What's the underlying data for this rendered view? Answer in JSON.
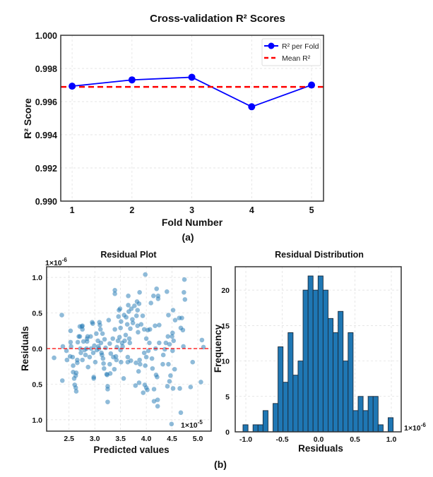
{
  "chart_data": [
    {
      "type": "line",
      "title": "Cross-validation R² Scores",
      "xlabel": "Fold Number",
      "ylabel": "R² Score",
      "panel_label": "(a)",
      "x": [
        1,
        2,
        3,
        4,
        5
      ],
      "xticks": [
        "1",
        "2",
        "3",
        "4",
        "5"
      ],
      "yticks": [
        "0.990",
        "0.992",
        "0.994",
        "0.996",
        "0.998",
        "1.000"
      ],
      "ytick_values": [
        0.99,
        0.992,
        0.994,
        0.996,
        0.998,
        1.0
      ],
      "xlim": [
        0.81,
        5.2
      ],
      "ylim": [
        0.99,
        1.0
      ],
      "grid": true,
      "legend_placement": "top-right",
      "series": [
        {
          "name": "R² per Fold",
          "values": [
            0.99693,
            0.99731,
            0.99747,
            0.99569,
            0.997
          ],
          "color": "#0000ff",
          "style": "solid-with-markers"
        }
      ],
      "hlines": [
        {
          "name": "Mean R²",
          "value": 0.99689,
          "color": "#ff0000",
          "style": "dashed"
        }
      ]
    },
    {
      "type": "scatter",
      "title": "Residual Plot",
      "xlabel": "Predicted  values",
      "ylabel": "Residuals",
      "panel_label": "(b)",
      "x_multiplier": "1×10",
      "x_multiplier_exp": "-5",
      "y_multiplier": "1×10",
      "y_multiplier_exp": "-6",
      "xticks": [
        "2.5",
        "3.0",
        "3.5",
        "4.0",
        "4.5",
        "5.0"
      ],
      "xtick_values": [
        2.5,
        3.0,
        3.5,
        4.0,
        4.5,
        5.0
      ],
      "yticks": [
        "1.0",
        "0.5",
        "0.0",
        "0.5",
        "1.0"
      ],
      "ytick_values": [
        1.0,
        0.5,
        0.0,
        -0.5,
        -1.0
      ],
      "xlim": [
        2.065,
        5.26
      ],
      "ylim": [
        -1.16,
        1.15
      ],
      "grid": true,
      "point_color": "#1f77b4",
      "zero_line_color": "#ff0000",
      "points": [
        [
          2.21,
          -0.13
        ],
        [
          2.36,
          0.47
        ],
        [
          2.37,
          -0.45
        ],
        [
          2.38,
          0.03
        ],
        [
          2.45,
          -0.03
        ],
        [
          2.46,
          -0.16
        ],
        [
          2.53,
          0.25
        ],
        [
          2.53,
          0.09
        ],
        [
          2.54,
          0.03
        ],
        [
          2.52,
          -0.11
        ],
        [
          2.57,
          -0.12
        ],
        [
          2.58,
          -0.24
        ],
        [
          2.58,
          -0.33
        ],
        [
          2.6,
          -0.42
        ],
        [
          2.61,
          -0.51
        ],
        [
          2.63,
          -0.55
        ],
        [
          2.64,
          -0.34
        ],
        [
          2.64,
          -0.6
        ],
        [
          2.63,
          -0.38
        ],
        [
          2.66,
          -0.16
        ],
        [
          2.66,
          -0.2
        ],
        [
          2.67,
          0.09
        ],
        [
          2.69,
          0.17
        ],
        [
          2.71,
          0.31
        ],
        [
          2.71,
          0.17
        ],
        [
          2.72,
          0.0
        ],
        [
          2.73,
          -0.06
        ],
        [
          2.75,
          0.31
        ],
        [
          2.76,
          0.27
        ],
        [
          2.76,
          0.32
        ],
        [
          2.76,
          -0.16
        ],
        [
          2.78,
          0.1
        ],
        [
          2.8,
          -0.02
        ],
        [
          2.82,
          -0.09
        ],
        [
          2.84,
          0.0
        ],
        [
          2.85,
          0.14
        ],
        [
          2.85,
          0.1
        ],
        [
          2.86,
          0.17
        ],
        [
          2.87,
          -0.26
        ],
        [
          2.9,
          -0.12
        ],
        [
          2.92,
          0.17
        ],
        [
          2.93,
          0.0
        ],
        [
          2.95,
          0.37
        ],
        [
          2.96,
          0.35
        ],
        [
          2.97,
          -0.06
        ],
        [
          2.98,
          -0.4
        ],
        [
          2.98,
          -0.42
        ],
        [
          2.99,
          0.04
        ],
        [
          3.01,
          -0.19
        ],
        [
          3.03,
          0.21
        ],
        [
          3.04,
          -0.02
        ],
        [
          3.06,
          0.11
        ],
        [
          3.07,
          0.03
        ],
        [
          3.08,
          0.0
        ],
        [
          3.09,
          0.37
        ],
        [
          3.1,
          0.33
        ],
        [
          3.11,
          0.27
        ],
        [
          3.12,
          0.08
        ],
        [
          3.13,
          -0.06
        ],
        [
          3.14,
          -0.09
        ],
        [
          3.15,
          0.21
        ],
        [
          3.16,
          -0.14
        ],
        [
          3.17,
          -0.21
        ],
        [
          3.18,
          -0.28
        ],
        [
          3.19,
          0.13
        ],
        [
          3.21,
          0.01
        ],
        [
          3.23,
          -0.36
        ],
        [
          3.24,
          -0.37
        ],
        [
          3.25,
          -0.53
        ],
        [
          3.25,
          -0.57
        ],
        [
          3.25,
          -0.75
        ],
        [
          3.27,
          0.4
        ],
        [
          3.29,
          0.07
        ],
        [
          3.29,
          -0.22
        ],
        [
          3.3,
          -0.35
        ],
        [
          3.31,
          -0.07
        ],
        [
          3.35,
          0.14
        ],
        [
          3.36,
          -0.12
        ],
        [
          3.38,
          -0.29
        ],
        [
          3.39,
          0.27
        ],
        [
          3.39,
          0.82
        ],
        [
          3.39,
          0.77
        ],
        [
          3.41,
          -0.11
        ],
        [
          3.42,
          -0.16
        ],
        [
          3.43,
          0.02
        ],
        [
          3.45,
          0.11
        ],
        [
          3.46,
          0.45
        ],
        [
          3.47,
          0.54
        ],
        [
          3.48,
          0.16
        ],
        [
          3.49,
          0.56
        ],
        [
          3.5,
          0.29
        ],
        [
          3.5,
          -0.02
        ],
        [
          3.51,
          -0.19
        ],
        [
          3.51,
          0.38
        ],
        [
          3.53,
          0.08
        ],
        [
          3.54,
          0.03
        ],
        [
          3.56,
          -0.42
        ],
        [
          3.57,
          0.47
        ],
        [
          3.58,
          0.11
        ],
        [
          3.6,
          0.19
        ],
        [
          3.61,
          0.44
        ],
        [
          3.63,
          0.34
        ],
        [
          3.64,
          -0.12
        ],
        [
          3.64,
          -0.19
        ],
        [
          3.65,
          0.74
        ],
        [
          3.65,
          0.61
        ],
        [
          3.66,
          0.52
        ],
        [
          3.67,
          0.14
        ],
        [
          3.68,
          0.08
        ],
        [
          3.69,
          0.28
        ],
        [
          3.7,
          -0.17
        ],
        [
          3.71,
          0.56
        ],
        [
          3.73,
          0.41
        ],
        [
          3.74,
          0.36
        ],
        [
          3.77,
          0.6
        ],
        [
          3.79,
          -0.52
        ],
        [
          3.8,
          -0.2
        ],
        [
          3.81,
          0.46
        ],
        [
          3.82,
          0.66
        ],
        [
          3.83,
          0.54
        ],
        [
          3.83,
          0.32
        ],
        [
          3.84,
          0.23
        ],
        [
          3.85,
          -0.32
        ],
        [
          3.86,
          0.63
        ],
        [
          3.86,
          -0.48
        ],
        [
          3.87,
          0.79
        ],
        [
          3.87,
          -0.16
        ],
        [
          3.88,
          -0.22
        ],
        [
          3.9,
          0.34
        ],
        [
          3.93,
          0.46
        ],
        [
          3.94,
          -0.62
        ],
        [
          3.96,
          -0.06
        ],
        [
          3.96,
          0.27
        ],
        [
          3.97,
          -0.51
        ],
        [
          3.98,
          -0.24
        ],
        [
          3.98,
          1.04
        ],
        [
          4.0,
          -0.55
        ],
        [
          4.0,
          0.14
        ],
        [
          4.0,
          -0.12
        ],
        [
          4.02,
          -0.58
        ],
        [
          4.03,
          0.26
        ],
        [
          4.04,
          -0.03
        ],
        [
          4.06,
          0.08
        ],
        [
          4.07,
          0.27
        ],
        [
          4.09,
          0.64
        ],
        [
          4.11,
          -0.14
        ],
        [
          4.12,
          -0.28
        ],
        [
          4.14,
          0.74
        ],
        [
          4.15,
          -0.74
        ],
        [
          4.15,
          -0.57
        ],
        [
          4.17,
          0.32
        ],
        [
          4.18,
          0.0
        ],
        [
          4.19,
          -0.37
        ],
        [
          4.2,
          0.84
        ],
        [
          4.21,
          -0.4
        ],
        [
          4.22,
          -0.81
        ],
        [
          4.22,
          -0.72
        ],
        [
          4.23,
          0.7
        ],
        [
          4.23,
          0.74
        ],
        [
          4.25,
          0.08
        ],
        [
          4.25,
          0.33
        ],
        [
          4.32,
          -0.22
        ],
        [
          4.33,
          -0.09
        ],
        [
          4.36,
          -0.01
        ],
        [
          4.38,
          0.08
        ],
        [
          4.4,
          0.8
        ],
        [
          4.41,
          -0.53
        ],
        [
          4.42,
          0.17
        ],
        [
          4.43,
          0.47
        ],
        [
          4.43,
          -0.22
        ],
        [
          4.45,
          0.06
        ],
        [
          4.45,
          -0.46
        ],
        [
          4.47,
          -0.38
        ],
        [
          4.49,
          -1.06
        ],
        [
          4.5,
          0.17
        ],
        [
          4.51,
          -0.03
        ],
        [
          4.51,
          0.22
        ],
        [
          4.52,
          0.54
        ],
        [
          4.52,
          -0.56
        ],
        [
          4.53,
          0.11
        ],
        [
          4.55,
          -0.29
        ],
        [
          4.56,
          0.4
        ],
        [
          4.64,
          0.43
        ],
        [
          4.65,
          -0.56
        ],
        [
          4.67,
          -0.9
        ],
        [
          4.67,
          0.29
        ],
        [
          4.69,
          0.43
        ],
        [
          4.71,
          0.26
        ],
        [
          4.72,
          0.03
        ],
        [
          4.73,
          0.79
        ],
        [
          4.74,
          0.97
        ],
        [
          4.75,
          0.69
        ],
        [
          4.86,
          -0.54
        ],
        [
          4.9,
          -0.19
        ],
        [
          5.06,
          -0.47
        ],
        [
          5.08,
          0.12
        ],
        [
          5.11,
          0.02
        ]
      ]
    },
    {
      "type": "bar",
      "subtype": "histogram",
      "title": "Residual Distribution",
      "xlabel": "Residuals",
      "ylabel": "Frequency",
      "x_multiplier": "1×10",
      "x_multiplier_exp": "-6",
      "xticks": [
        "-1.0",
        "-0.5",
        "0.0",
        "0.5",
        "1.0"
      ],
      "xtick_values": [
        -1.0,
        -0.5,
        0.0,
        0.5,
        1.0
      ],
      "yticks": [
        "0",
        "5",
        "10",
        "15",
        "20"
      ],
      "ytick_values": [
        0,
        5,
        10,
        15,
        20
      ],
      "xlim": [
        -1.146,
        1.136
      ],
      "ylim": [
        0,
        23.3
      ],
      "grid": true,
      "bar_color": "#1f77b4",
      "edge_color": "#1a2a3a",
      "bin_start": -1.039,
      "bin_width": 0.0688,
      "counts": [
        1,
        0,
        1,
        1,
        3,
        0,
        4,
        12,
        7,
        14,
        8,
        10,
        20,
        22,
        20,
        22,
        20,
        16,
        14,
        17,
        10,
        14,
        3,
        5,
        3,
        5,
        5,
        1,
        0,
        2
      ]
    }
  ]
}
